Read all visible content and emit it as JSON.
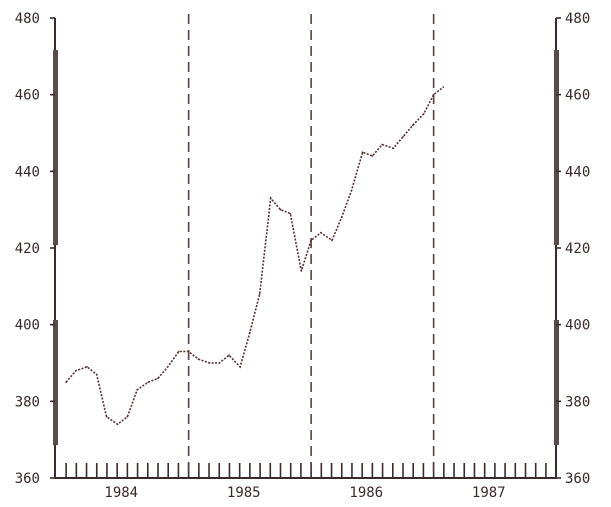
{
  "chart_data": {
    "type": "line",
    "title": "",
    "xlabel": "",
    "ylabel": "",
    "y_ticks_left": [
      "480",
      "460",
      "440",
      "420",
      "400",
      "380",
      "360"
    ],
    "y_ticks_right": [
      "480",
      "460",
      "440",
      "420",
      "400",
      "380",
      "360"
    ],
    "ylim": [
      360,
      480
    ],
    "x_labels": [
      "1984",
      "1985",
      "1986",
      "1987"
    ],
    "xlim": [
      1983.95,
      1987.95
    ],
    "vertical_dashed_lines_at": [
      1985.0,
      1986.0,
      1987.0
    ],
    "grid": false,
    "legend": "none",
    "series": [
      {
        "x": [
          1984.0,
          1984.08,
          1984.17,
          1984.25,
          1984.33,
          1984.42,
          1984.5,
          1984.58,
          1984.67,
          1984.75,
          1984.83,
          1984.92,
          1985.0,
          1985.08,
          1985.17,
          1985.25,
          1985.33,
          1985.42,
          1985.5,
          1985.58,
          1985.67,
          1985.75,
          1985.83,
          1985.92,
          1986.0,
          1986.08,
          1986.17,
          1986.25,
          1986.33,
          1986.42,
          1986.5,
          1986.58,
          1986.67,
          1986.75,
          1986.83,
          1986.92,
          1987.0,
          1987.08
        ],
        "y": [
          385,
          388,
          389,
          387,
          376,
          374,
          376,
          383,
          385,
          386,
          389,
          393,
          393,
          391,
          390,
          390,
          392,
          389,
          398,
          408,
          433,
          430,
          429,
          414,
          422,
          424,
          422,
          428,
          435,
          445,
          444,
          447,
          446,
          449,
          452,
          455,
          460,
          462
        ]
      }
    ]
  }
}
